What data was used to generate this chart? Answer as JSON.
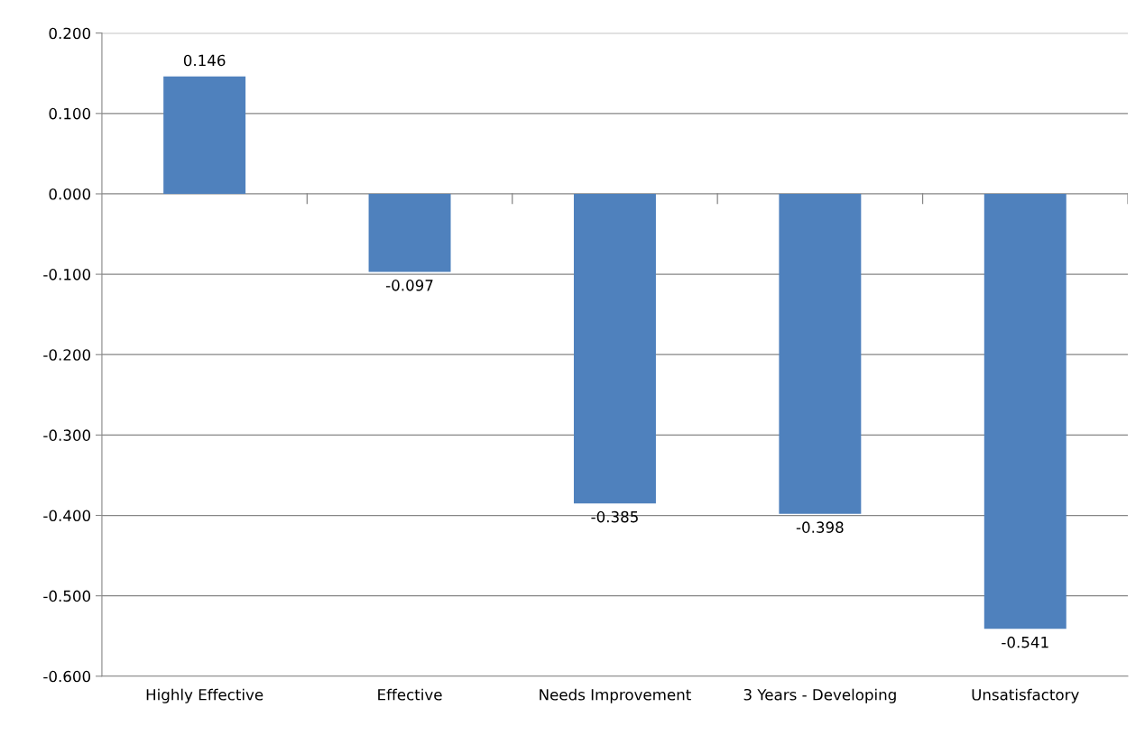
{
  "chart_data": {
    "type": "bar",
    "categories": [
      "Highly Effective",
      "Effective",
      "Needs Improvement",
      "3 Years - Developing",
      "Unsatisfactory"
    ],
    "values": [
      0.146,
      -0.097,
      -0.385,
      -0.398,
      -0.541
    ],
    "color": "#4f81bd",
    "ylim": [
      -0.6,
      0.2
    ],
    "yticks": [
      {
        "value": -0.6,
        "label": "-0.600"
      },
      {
        "value": -0.5,
        "label": "-0.500"
      },
      {
        "value": -0.4,
        "label": "-0.400"
      },
      {
        "value": -0.3,
        "label": "-0.300"
      },
      {
        "value": -0.2,
        "label": "-0.200"
      },
      {
        "value": -0.1,
        "label": "-0.100"
      },
      {
        "value": 0,
        "label": "0.000"
      },
      {
        "value": 0.1,
        "label": "0.100"
      },
      {
        "value": 0.2,
        "label": "0.200"
      }
    ],
    "value_labels": [
      "0.146",
      "-0.097",
      "-0.385",
      "-0.398",
      "-0.541"
    ],
    "grid": "y",
    "legend": false
  }
}
